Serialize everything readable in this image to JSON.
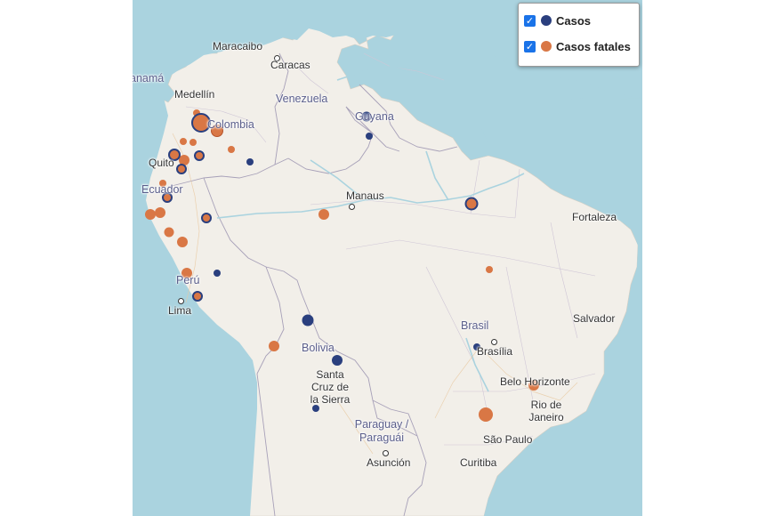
{
  "legend": {
    "items": [
      {
        "label": "Casos",
        "checked": true,
        "color": "#2a3f7e"
      },
      {
        "label": "Casos fatales",
        "checked": true,
        "color": "#d97745"
      }
    ],
    "check_glyph": "✓"
  },
  "map": {
    "water_color": "#aad3df",
    "land_color": "#f2efe9",
    "countries": [
      {
        "id": "colombia",
        "label": "Colombia"
      },
      {
        "id": "venezuela",
        "label": "Venezuela"
      },
      {
        "id": "guyana",
        "label": "Guyana"
      },
      {
        "id": "ecuador",
        "label": "Ecuador"
      },
      {
        "id": "peru",
        "label": "Perú"
      },
      {
        "id": "bolivia",
        "label": "Bolivia"
      },
      {
        "id": "brasil",
        "label": "Brasil"
      },
      {
        "id": "paraguay",
        "label": "Paraguay / Paraguái"
      },
      {
        "id": "panama",
        "label": "anamá"
      }
    ],
    "cities": [
      {
        "id": "maracaibo",
        "label": "Maracaibo"
      },
      {
        "id": "caracas",
        "label": "Caracas"
      },
      {
        "id": "medellin",
        "label": "Medellín"
      },
      {
        "id": "quito",
        "label": "Quito"
      },
      {
        "id": "manaus",
        "label": "Manaus"
      },
      {
        "id": "fortaleza",
        "label": "Fortaleza"
      },
      {
        "id": "lima",
        "label": "Lima"
      },
      {
        "id": "salvador",
        "label": "Salvador"
      },
      {
        "id": "brasilia",
        "label": "Brasília"
      },
      {
        "id": "santa-cruz",
        "label": "Santa Cruz de la Sierra"
      },
      {
        "id": "belo-horizonte",
        "label": "Belo Horizonte"
      },
      {
        "id": "rio",
        "label": "Rio de Janeiro"
      },
      {
        "id": "sao-paulo",
        "label": "São Paulo"
      },
      {
        "id": "asuncion",
        "label": "Asunción"
      },
      {
        "id": "curitiba",
        "label": "Curitiba"
      }
    ]
  }
}
